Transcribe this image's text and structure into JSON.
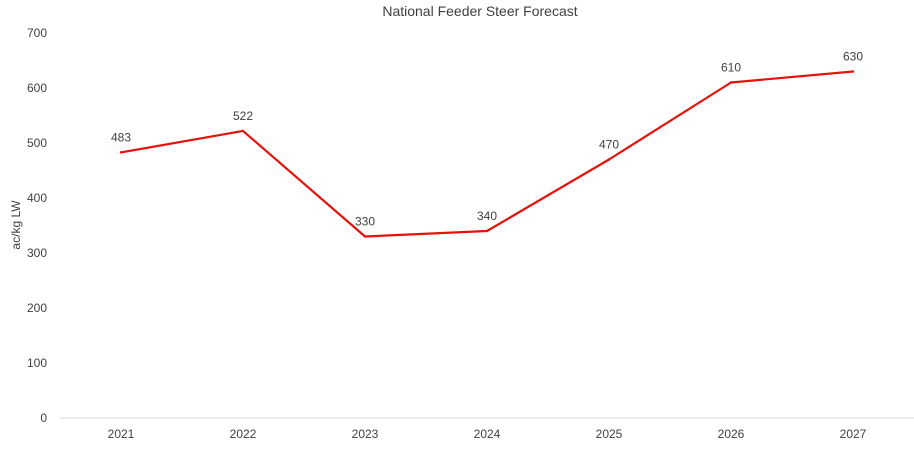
{
  "chart_data": {
    "type": "line",
    "title": "National Feeder Steer Forecast",
    "xlabel": "",
    "ylabel": "ac/kg LW",
    "categories": [
      "2021",
      "2022",
      "2023",
      "2024",
      "2025",
      "2026",
      "2027"
    ],
    "series": [
      {
        "values": [
          483,
          522,
          330,
          340,
          470,
          610,
          630
        ],
        "color": "#e3120b",
        "data_labels": [
          "483",
          "522",
          "330",
          "340",
          "470",
          "610",
          "630"
        ]
      }
    ],
    "y_ticks": [
      "0",
      "100",
      "200",
      "300",
      "400",
      "500",
      "600",
      "700"
    ],
    "ylim": [
      0,
      700
    ],
    "grid": false,
    "legend": "none"
  }
}
